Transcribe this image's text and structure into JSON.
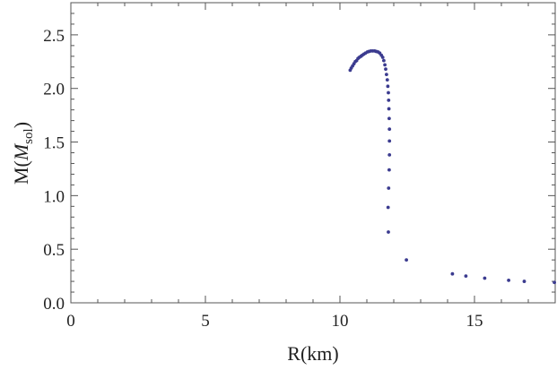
{
  "chart_data": {
    "type": "scatter",
    "xlabel": "R(km)",
    "ylabel": {
      "prefix": "M(",
      "main": "M",
      "subscript": "sol",
      "suffix": ")"
    },
    "xlim": [
      0,
      18
    ],
    "ylim": [
      0,
      2.8
    ],
    "x_ticks": [
      0,
      5,
      10,
      15
    ],
    "x_tick_labels": [
      "0",
      "5",
      "10",
      "15"
    ],
    "y_ticks": [
      0,
      0.5,
      1.0,
      1.5,
      2.0,
      2.5
    ],
    "y_tick_labels": [
      "0.0",
      "0.5",
      "1.0",
      "1.5",
      "2.0",
      "2.5"
    ],
    "grid": false,
    "frame": "box",
    "marker_color": "#3b3b8f",
    "axis_color": "#555555",
    "series": [
      {
        "points": [
          [
            10.38,
            2.17
          ],
          [
            10.42,
            2.19
          ],
          [
            10.47,
            2.21
          ],
          [
            10.52,
            2.23
          ],
          [
            10.57,
            2.25
          ],
          [
            10.62,
            2.26
          ],
          [
            10.67,
            2.28
          ],
          [
            10.72,
            2.29
          ],
          [
            10.78,
            2.3
          ],
          [
            10.83,
            2.31
          ],
          [
            10.89,
            2.32
          ],
          [
            10.95,
            2.33
          ],
          [
            11.02,
            2.34
          ],
          [
            11.08,
            2.345
          ],
          [
            11.15,
            2.35
          ],
          [
            11.22,
            2.35
          ],
          [
            11.29,
            2.35
          ],
          [
            11.35,
            2.345
          ],
          [
            11.42,
            2.34
          ],
          [
            11.48,
            2.33
          ],
          [
            11.54,
            2.31
          ],
          [
            11.59,
            2.29
          ],
          [
            11.63,
            2.26
          ],
          [
            11.67,
            2.22
          ],
          [
            11.7,
            2.18
          ],
          [
            11.73,
            2.13
          ],
          [
            11.76,
            2.08
          ],
          [
            11.78,
            2.02
          ],
          [
            11.8,
            1.96
          ],
          [
            11.81,
            1.89
          ],
          [
            11.82,
            1.81
          ],
          [
            11.83,
            1.72
          ],
          [
            11.84,
            1.62
          ],
          [
            11.84,
            1.51
          ],
          [
            11.84,
            1.38
          ],
          [
            11.83,
            1.24
          ],
          [
            11.81,
            1.07
          ],
          [
            11.79,
            0.89
          ],
          [
            11.8,
            0.66
          ],
          [
            12.47,
            0.4
          ],
          [
            14.18,
            0.27
          ],
          [
            14.68,
            0.25
          ],
          [
            15.38,
            0.23
          ],
          [
            16.27,
            0.21
          ],
          [
            16.85,
            0.2
          ],
          [
            17.97,
            0.19
          ]
        ]
      }
    ]
  }
}
